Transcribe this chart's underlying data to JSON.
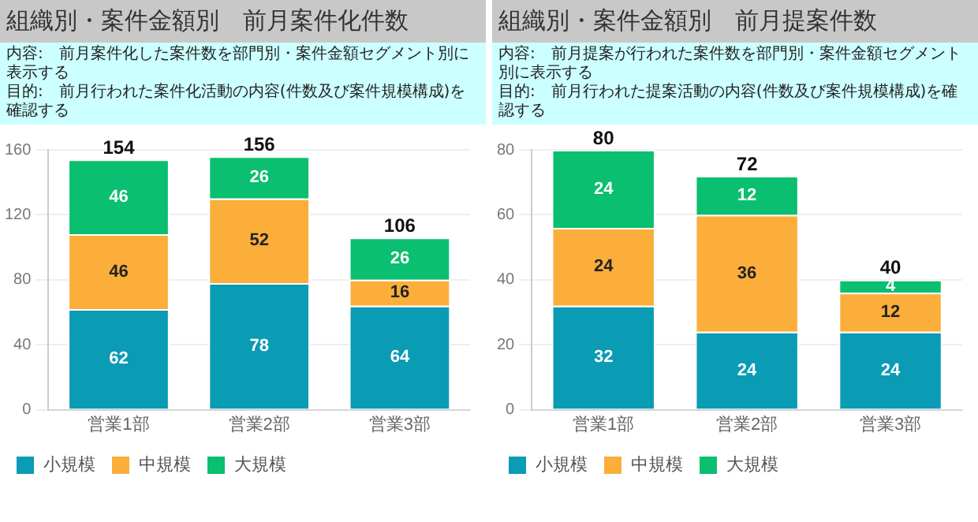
{
  "chart_data": [
    {
      "type": "bar",
      "title": "組織別・案件金額別　前月案件化件数",
      "annotations": [
        "内容:　前月案件化した案件数を部門別・案件金額セグメント別に表示する",
        "目的:　前月行われた案件化活動の内容(件数及び案件規模構成)を確認する"
      ],
      "categories": [
        "営業1部",
        "営業2部",
        "営業3部"
      ],
      "stacked": true,
      "series": [
        {
          "name": "小規模",
          "color": "#0a9bb5",
          "values": [
            62,
            78,
            64
          ]
        },
        {
          "name": "中規模",
          "color": "#fbae3a",
          "values": [
            46,
            52,
            16
          ]
        },
        {
          "name": "大規模",
          "color": "#0abf6f",
          "values": [
            46,
            26,
            26
          ]
        }
      ],
      "totals": [
        "154",
        "156",
        "106"
      ],
      "data_labels": true,
      "ylim": [
        0,
        160
      ],
      "yticks": [
        0,
        40,
        80,
        120,
        160
      ],
      "grid": "y",
      "legend": "bottom left"
    },
    {
      "type": "bar",
      "title": "組織別・案件金額別　前月提案件数",
      "annotations": [
        "内容:　前月提案が行われた案件数を部門別・案件金額セグメント別に表示する",
        "目的:　前月行われた提案活動の内容(件数及び案件規模構成)を確認する"
      ],
      "categories": [
        "営業1部",
        "営業2部",
        "営業3部"
      ],
      "stacked": true,
      "series": [
        {
          "name": "小規模",
          "color": "#0a9bb5",
          "values": [
            32,
            24,
            24
          ]
        },
        {
          "name": "中規模",
          "color": "#fbae3a",
          "values": [
            24,
            36,
            12
          ]
        },
        {
          "name": "大規模",
          "color": "#0abf6f",
          "values": [
            24,
            12,
            4
          ]
        }
      ],
      "totals": [
        "80",
        "72",
        "40"
      ],
      "data_labels": true,
      "ylim": [
        0,
        80
      ],
      "yticks": [
        0,
        20,
        40,
        60,
        80
      ],
      "grid": "y",
      "legend": "bottom left"
    }
  ]
}
